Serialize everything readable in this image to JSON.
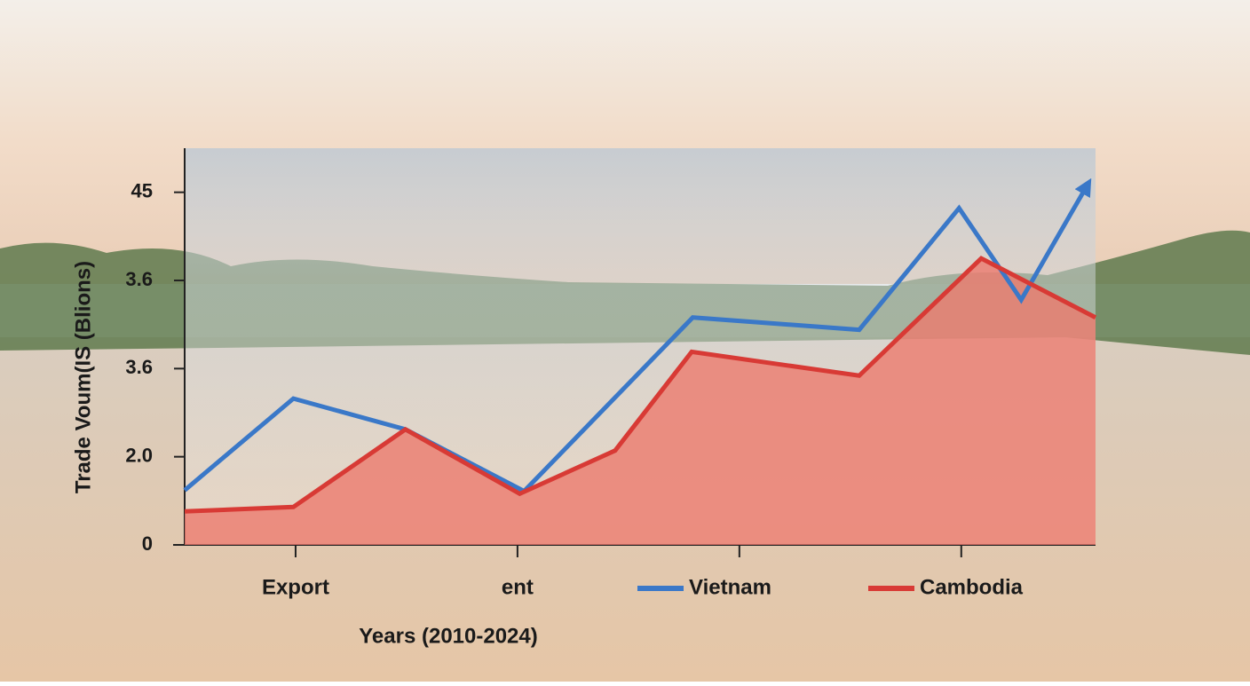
{
  "chart_data": {
    "type": "line",
    "y_label": "Trade Voum(IS (Blions)",
    "x_label": "Years (2010-2024)",
    "xlim": [
      0,
      8.21
    ],
    "ylim": [
      0,
      4.5
    ],
    "yticks": [
      0,
      {
        "value": 1,
        "label": "2.0"
      },
      {
        "value": 2,
        "label": "3.6"
      },
      {
        "value": 3,
        "label": "3.6"
      },
      {
        "value": 4,
        "label": "45"
      }
    ],
    "xticks": [
      {
        "value": 1,
        "label": "Export"
      },
      {
        "value": 3,
        "label": "ent"
      },
      {
        "value": 5,
        "label": null
      },
      {
        "value": 7,
        "label": null
      }
    ],
    "legend": "bottom",
    "series": [
      {
        "name": "Vietnam",
        "color": "#3a78c8",
        "x": [
          0,
          0.98,
          1.99,
          3.06,
          4.58,
          6.08,
          6.98,
          7.54,
          8.14
        ],
        "values": [
          0.62,
          1.66,
          1.31,
          0.61,
          2.58,
          2.44,
          3.82,
          2.78,
          4.09
        ]
      },
      {
        "name": "Cambodia",
        "color": "#d83a35",
        "fill": "#ec7a6e",
        "x": [
          0,
          0.98,
          1.99,
          3.02,
          3.88,
          4.57,
          6.08,
          7.18,
          8.21
        ],
        "values": [
          0.38,
          0.43,
          1.31,
          0.58,
          1.07,
          2.19,
          1.92,
          3.25,
          2.58
        ]
      }
    ]
  }
}
